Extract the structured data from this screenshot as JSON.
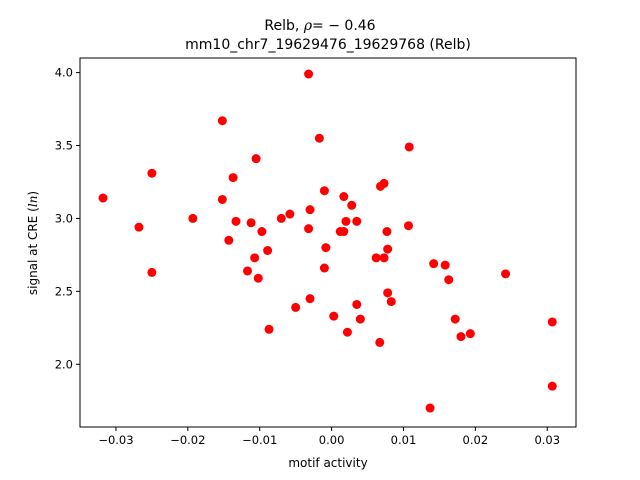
{
  "chart_data": {
    "type": "scatter",
    "title_name": "Relb,",
    "title_rho_symbol": "ρ",
    "title_rho_value": "= − 0.46",
    "subtitle": "mm10_chr7_19629476_19629768 (Relb)",
    "xlabel": "motif activity",
    "ylabel": {
      "prefix": "signal at CRE (",
      "unit": "ln",
      "suffix": ")"
    },
    "xlim": [
      -0.035,
      0.034
    ],
    "ylim": [
      1.57,
      4.1
    ],
    "xticks": [
      {
        "value": -0.03,
        "label": "−0.03"
      },
      {
        "value": -0.02,
        "label": "−0.02"
      },
      {
        "value": -0.01,
        "label": "−0.01"
      },
      {
        "value": 0.0,
        "label": "0.00"
      },
      {
        "value": 0.01,
        "label": "0.01"
      },
      {
        "value": 0.02,
        "label": "0.02"
      },
      {
        "value": 0.03,
        "label": "0.03"
      }
    ],
    "yticks": [
      {
        "value": 2.0,
        "label": "2.0"
      },
      {
        "value": 2.5,
        "label": "2.5"
      },
      {
        "value": 3.0,
        "label": "3.0"
      },
      {
        "value": 3.5,
        "label": "3.5"
      },
      {
        "value": 4.0,
        "label": "4.0"
      }
    ],
    "grid": false,
    "marker_color": "#ff0000",
    "series": [
      {
        "points": [
          {
            "x": -0.0318,
            "y": 3.14
          },
          {
            "x": -0.0268,
            "y": 2.94
          },
          {
            "x": -0.025,
            "y": 3.31
          },
          {
            "x": -0.025,
            "y": 2.63
          },
          {
            "x": -0.0193,
            "y": 3.0
          },
          {
            "x": -0.0152,
            "y": 3.67
          },
          {
            "x": -0.0152,
            "y": 3.13
          },
          {
            "x": -0.0143,
            "y": 2.85
          },
          {
            "x": -0.0137,
            "y": 3.28
          },
          {
            "x": -0.0133,
            "y": 2.98
          },
          {
            "x": -0.0117,
            "y": 2.64
          },
          {
            "x": -0.0112,
            "y": 2.97
          },
          {
            "x": -0.0107,
            "y": 2.73
          },
          {
            "x": -0.0105,
            "y": 3.41
          },
          {
            "x": -0.0102,
            "y": 2.59
          },
          {
            "x": -0.0097,
            "y": 2.91
          },
          {
            "x": -0.0089,
            "y": 2.78
          },
          {
            "x": -0.0087,
            "y": 2.24
          },
          {
            "x": -0.007,
            "y": 3.0
          },
          {
            "x": -0.0058,
            "y": 3.03
          },
          {
            "x": -0.005,
            "y": 2.39
          },
          {
            "x": -0.0032,
            "y": 3.99
          },
          {
            "x": -0.0032,
            "y": 2.93
          },
          {
            "x": -0.003,
            "y": 3.06
          },
          {
            "x": -0.003,
            "y": 2.45
          },
          {
            "x": -0.0017,
            "y": 3.55
          },
          {
            "x": -0.001,
            "y": 3.19
          },
          {
            "x": -0.001,
            "y": 2.66
          },
          {
            "x": -0.0008,
            "y": 2.8
          },
          {
            "x": 0.0003,
            "y": 2.33
          },
          {
            "x": 0.0012,
            "y": 2.91
          },
          {
            "x": 0.0017,
            "y": 2.91
          },
          {
            "x": 0.0017,
            "y": 3.15
          },
          {
            "x": 0.002,
            "y": 2.98
          },
          {
            "x": 0.0022,
            "y": 2.22
          },
          {
            "x": 0.0028,
            "y": 3.09
          },
          {
            "x": 0.0035,
            "y": 2.41
          },
          {
            "x": 0.0035,
            "y": 2.98
          },
          {
            "x": 0.004,
            "y": 2.31
          },
          {
            "x": 0.0062,
            "y": 2.73
          },
          {
            "x": 0.0067,
            "y": 2.15
          },
          {
            "x": 0.0068,
            "y": 3.22
          },
          {
            "x": 0.0073,
            "y": 3.24
          },
          {
            "x": 0.0073,
            "y": 2.73
          },
          {
            "x": 0.0077,
            "y": 2.91
          },
          {
            "x": 0.0078,
            "y": 2.79
          },
          {
            "x": 0.0078,
            "y": 2.49
          },
          {
            "x": 0.0083,
            "y": 2.43
          },
          {
            "x": 0.0107,
            "y": 2.95
          },
          {
            "x": 0.0108,
            "y": 3.49
          },
          {
            "x": 0.0137,
            "y": 1.7
          },
          {
            "x": 0.0142,
            "y": 2.69
          },
          {
            "x": 0.0158,
            "y": 2.68
          },
          {
            "x": 0.0163,
            "y": 2.58
          },
          {
            "x": 0.0172,
            "y": 2.31
          },
          {
            "x": 0.018,
            "y": 2.19
          },
          {
            "x": 0.0193,
            "y": 2.21
          },
          {
            "x": 0.0242,
            "y": 2.62
          },
          {
            "x": 0.0307,
            "y": 2.29
          },
          {
            "x": 0.0307,
            "y": 1.85
          }
        ]
      }
    ]
  }
}
